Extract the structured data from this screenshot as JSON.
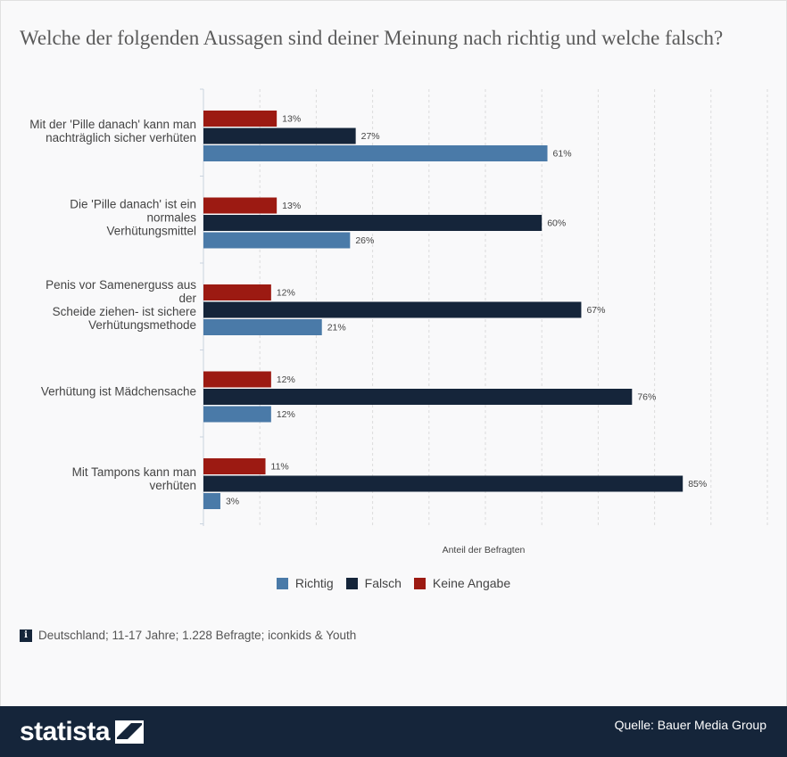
{
  "title": "Welche der folgenden Aussagen sind deiner Meinung nach richtig und welche falsch?",
  "chart_data": {
    "type": "bar",
    "orientation": "horizontal",
    "categories": [
      "Mit der 'Pille danach' kann man nachträglich sicher verhüten",
      "Die 'Pille danach' ist ein normales Verhütungsmittel",
      "Penis vor Samenerguss aus der Scheide ziehen- ist sichere Verhütungsmethode",
      "Verhütung ist Mädchensache",
      "Mit Tampons kann man verhüten"
    ],
    "category_label_lines": [
      [
        "Mit der 'Pille danach' kann man",
        "nachträglich sicher verhüten"
      ],
      [
        "Die 'Pille danach' ist ein",
        "normales",
        "Verhütungsmittel"
      ],
      [
        "Penis vor Samenerguss aus",
        "der",
        "Scheide ziehen- ist sichere",
        "Verhütungsmethode"
      ],
      [
        "Verhütung ist Mädchensache"
      ],
      [
        "Mit Tampons kann man",
        "verhüten"
      ]
    ],
    "series": [
      {
        "name": "Keine Angabe",
        "color": "#9c1a12",
        "values": [
          13,
          13,
          12,
          12,
          11
        ]
      },
      {
        "name": "Falsch",
        "color": "#15253a",
        "values": [
          27,
          60,
          67,
          76,
          85
        ]
      },
      {
        "name": "Richtig",
        "color": "#4a7aa8",
        "values": [
          61,
          26,
          21,
          12,
          3
        ]
      }
    ],
    "value_suffix": "%",
    "xlabel": "Anteil der Befragten",
    "ylabel": "",
    "xlim": [
      0,
      100
    ],
    "grid": true,
    "legend_position": "bottom",
    "legend": [
      {
        "name": "Richtig",
        "color": "#4a7aa8"
      },
      {
        "name": "Falsch",
        "color": "#15253a"
      },
      {
        "name": "Keine Angabe",
        "color": "#9c1a12"
      }
    ]
  },
  "note": "Deutschland; 11-17 Jahre; 1.228 Befragte; iconkids & Youth",
  "footer": {
    "brand": "statista",
    "source": "Quelle: Bauer Media Group"
  }
}
